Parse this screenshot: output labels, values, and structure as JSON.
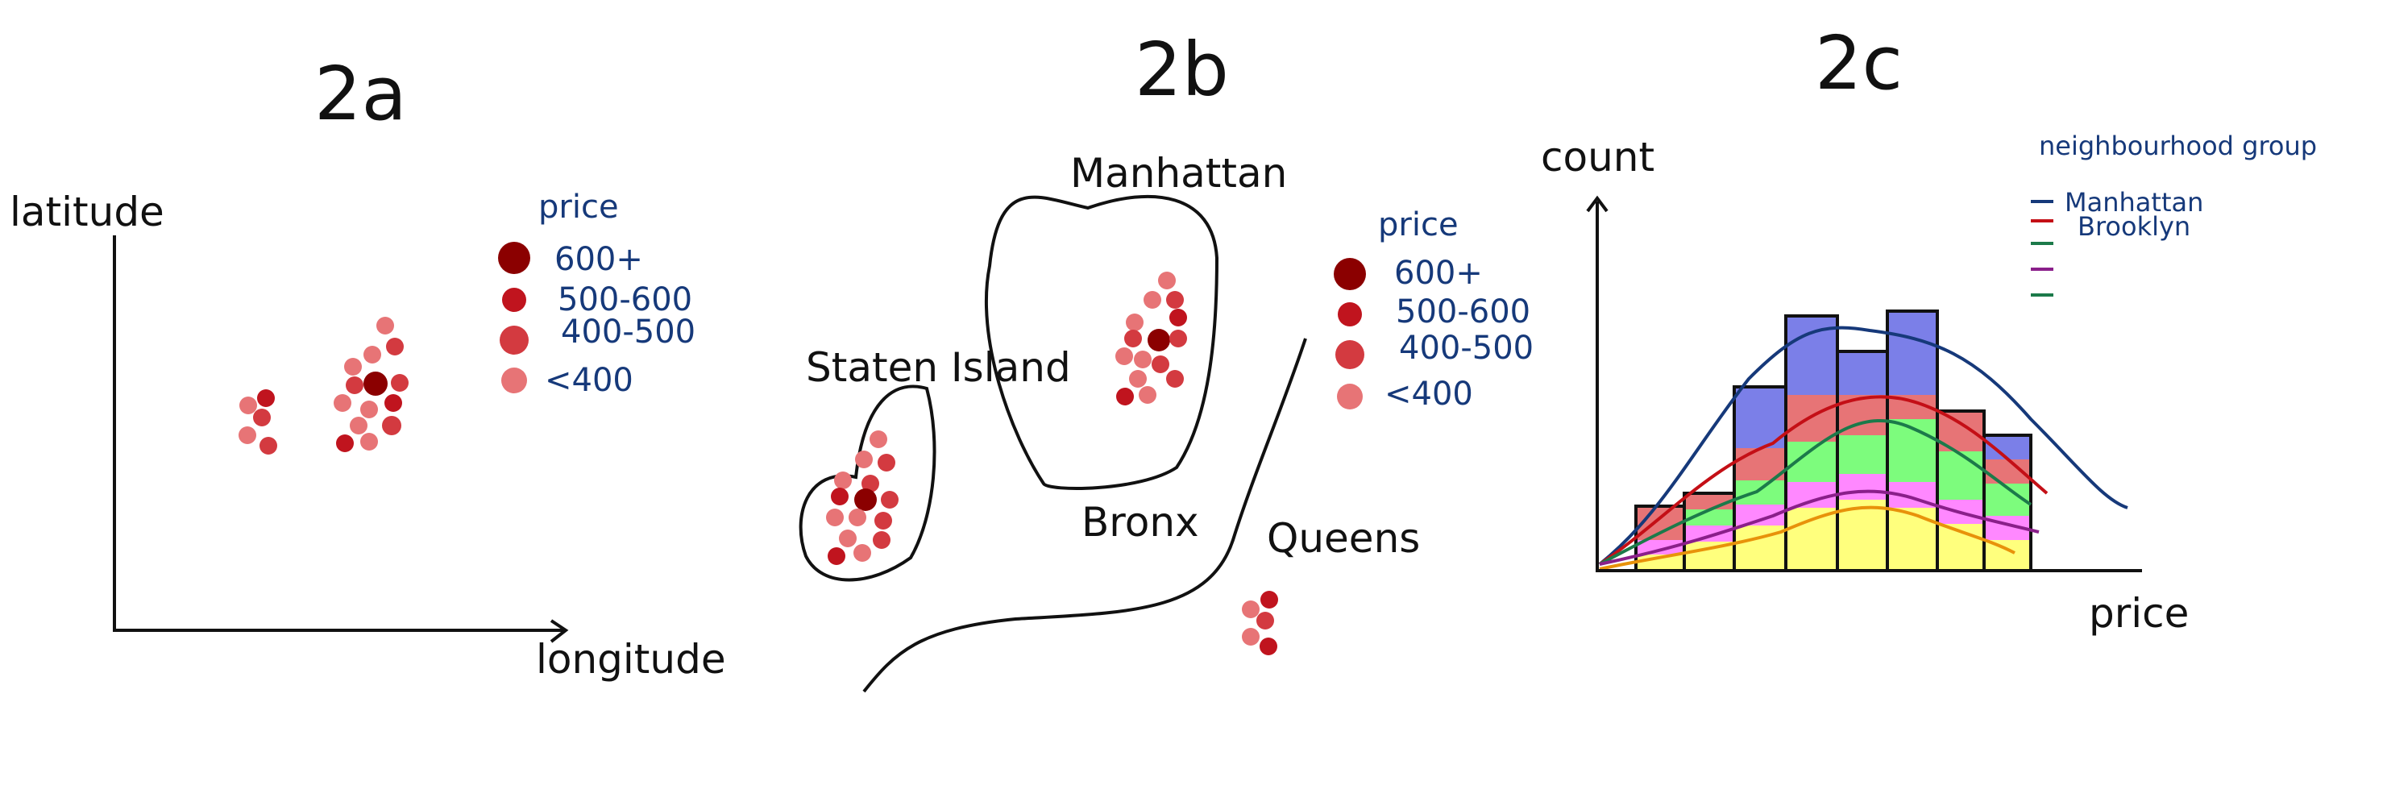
{
  "sketches": [
    {
      "title": "2a",
      "axis_y_label": "latitude",
      "axis_x_label": "longitude",
      "legend": {
        "title": "price",
        "items": [
          {
            "label": "600+",
            "color": "#8b0000"
          },
          {
            "label": "500-600",
            "color": "#c0141e"
          },
          {
            "label": "400-500",
            "color": "#d33a40"
          },
          {
            "label": "<400",
            "color": "#e77476"
          }
        ]
      }
    },
    {
      "title": "2b",
      "regions": [
        "Manhattan",
        "Staten Island",
        "Bronx",
        "Queens"
      ],
      "legend": {
        "title": "price",
        "items": [
          {
            "label": "600+",
            "color": "#8b0000"
          },
          {
            "label": "500-600",
            "color": "#c0141e"
          },
          {
            "label": "400-500",
            "color": "#d33a40"
          },
          {
            "label": "<400",
            "color": "#e77476"
          }
        ]
      }
    },
    {
      "title": "2c",
      "axis_y_label": "count",
      "axis_x_label": "price",
      "legend": {
        "title": "neighbourhood group",
        "items": [
          {
            "label": "Manhattan",
            "color": "#16397a"
          },
          {
            "label": "Brooklyn",
            "color": "#c40f16"
          },
          {
            "label": "",
            "color": "#1c7a4a"
          },
          {
            "label": "",
            "color": "#8a1f8a"
          },
          {
            "label": "",
            "color": "#1c7a4a"
          }
        ]
      },
      "histogram_colors": {
        "top": "#7b7fe8",
        "second": "#e77476",
        "third": "#7dfc7d",
        "fourth": "#ff88ff",
        "bottom": "#ffff7d"
      }
    }
  ]
}
